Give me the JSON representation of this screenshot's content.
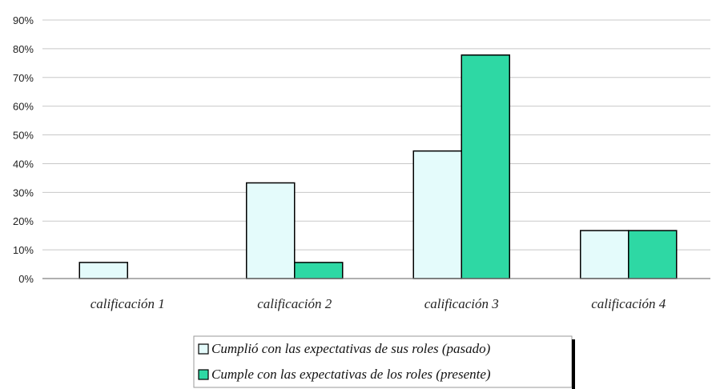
{
  "colors": {
    "series_past": "#e4fbfb",
    "series_present": "#2ed8a4",
    "bar_stroke": "#000000",
    "grid": "#c8c8c8",
    "axis": "#808080"
  },
  "chart_data": {
    "type": "bar",
    "title": "",
    "xlabel": "",
    "ylabel": "",
    "ylim": [
      0,
      90
    ],
    "y_tick_step": 10,
    "y_ticks": [
      "0%",
      "10%",
      "20%",
      "30%",
      "40%",
      "50%",
      "60%",
      "70%",
      "80%",
      "90%"
    ],
    "categories": [
      "calificación 1",
      "calificación 2",
      "calificación 3",
      "calificación 4"
    ],
    "series": [
      {
        "name": "Cumplió con las expectativas de sus roles (pasado)",
        "values": [
          5.6,
          33.3,
          44.4,
          16.7
        ]
      },
      {
        "name": "Cumple con las expectativas de los roles (presente)",
        "values": [
          0,
          5.6,
          77.8,
          16.7
        ]
      }
    ],
    "grid": true,
    "legend_position": "bottom-center"
  }
}
